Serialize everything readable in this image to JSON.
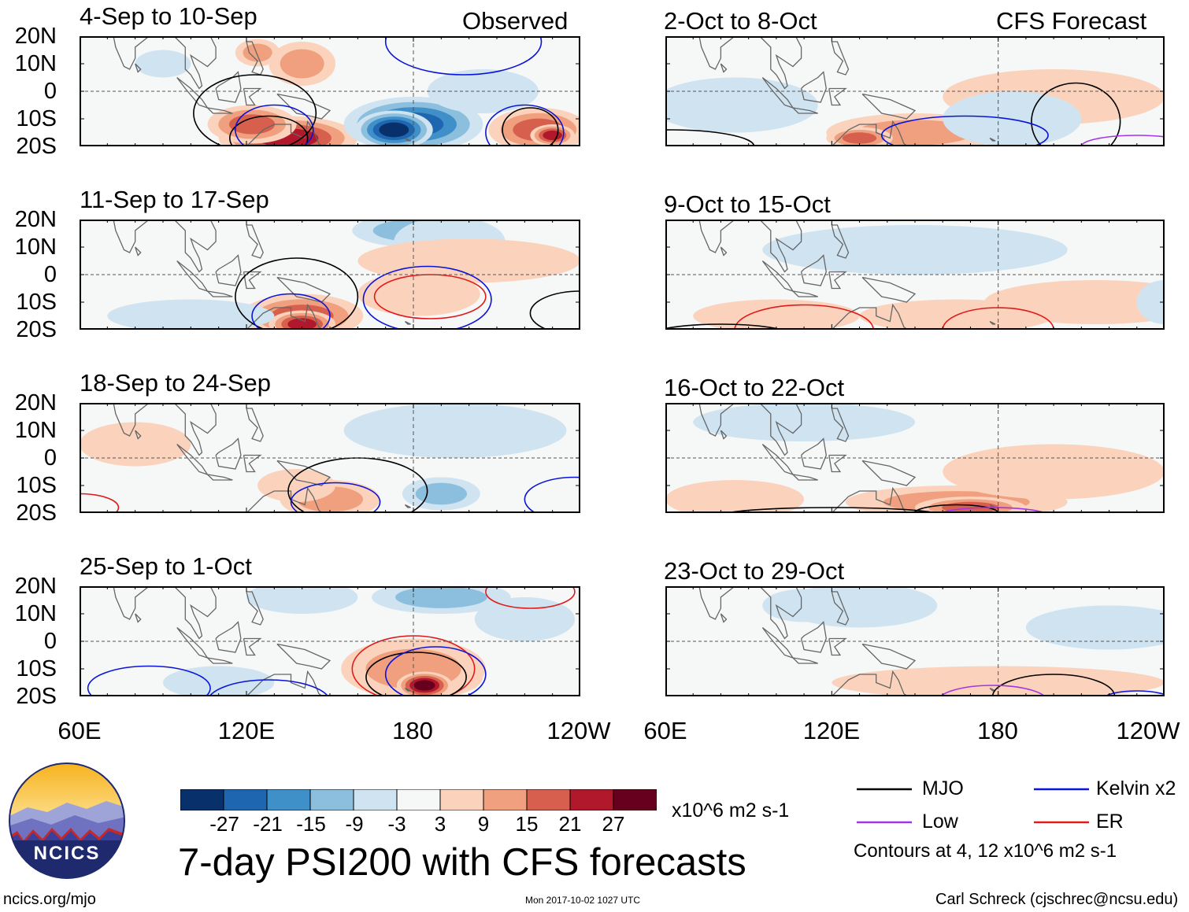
{
  "chart_data": {
    "type": "heatmap",
    "title": "7-day PSI200 with CFS forecasts",
    "columns": [
      {
        "label": "Observed",
        "panels": [
          "4-Sep to 10-Sep",
          "11-Sep to 17-Sep",
          "18-Sep to 24-Sep",
          "25-Sep to 1-Oct"
        ]
      },
      {
        "label": "CFS Forecast",
        "panels": [
          "2-Oct to 8-Oct",
          "9-Oct to 15-Oct",
          "16-Oct to 22-Oct",
          "23-Oct to 29-Oct"
        ]
      }
    ],
    "lat_ticks": [
      "20N",
      "10N",
      "0",
      "10S",
      "20S"
    ],
    "lon_ticks": [
      "60E",
      "120E",
      "180",
      "120W"
    ],
    "ylim": [
      -20,
      20
    ],
    "xlim": [
      60,
      240
    ],
    "colorbar": {
      "ticks": [
        "-27",
        "-21",
        "-15",
        "-9",
        "-3",
        "3",
        "9",
        "15",
        "21",
        "27"
      ],
      "colors": [
        "#08306b",
        "#1f66b0",
        "#3f8fc8",
        "#8cbfde",
        "#cfe3f1",
        "#f6f7f7",
        "#fbd3bd",
        "#f0a07e",
        "#d6604d",
        "#b2182b",
        "#67001f"
      ],
      "units": "x10^6 m2 s-1"
    },
    "legend": [
      {
        "name": "MJO",
        "color": "#000000"
      },
      {
        "name": "Kelvin x2",
        "color": "#0a14d8"
      },
      {
        "name": "Low",
        "color": "#a335e6"
      },
      {
        "name": "ER",
        "color": "#e01b1b"
      }
    ],
    "contour_note": "Contours at 4, 12 x10^6 m2 s-1",
    "panel_features": [
      {
        "blobs": [
          [
            135,
            -17,
            25,
            8,
            21
          ],
          [
            122,
            -12,
            16,
            7,
            15
          ],
          [
            124,
            14,
            8,
            5,
            9
          ],
          [
            140,
            10,
            12,
            8,
            9
          ],
          [
            180,
            -12,
            25,
            10,
            -21
          ],
          [
            173,
            -14,
            14,
            7,
            -27
          ],
          [
            225,
            -14,
            18,
            8,
            15
          ],
          [
            230,
            -16,
            8,
            4,
            21
          ],
          [
            90,
            10,
            10,
            5,
            -3
          ],
          [
            205,
            0,
            20,
            8,
            -3
          ]
        ],
        "contours": [
          [
            123,
            -8,
            22,
            14,
            "#000000"
          ],
          [
            128,
            -17,
            14,
            8,
            "#000000"
          ],
          [
            130,
            -14,
            14,
            9,
            "#0a14d8"
          ],
          [
            220,
            -15,
            14,
            10,
            "#0a14d8"
          ],
          [
            222,
            -14,
            10,
            8,
            "#000000"
          ],
          [
            198,
            18,
            28,
            12,
            "#0a14d8"
          ]
        ]
      },
      {
        "blobs": [
          [
            140,
            -15,
            22,
            8,
            15
          ],
          [
            140,
            -18,
            12,
            5,
            21
          ],
          [
            180,
            16,
            22,
            6,
            -9
          ],
          [
            193,
            12,
            20,
            9,
            -3
          ],
          [
            182,
            -7,
            22,
            8,
            3
          ],
          [
            200,
            5,
            40,
            8,
            3
          ],
          [
            100,
            -15,
            30,
            6,
            -3
          ]
        ],
        "contours": [
          [
            138,
            -8,
            22,
            14,
            "#000000"
          ],
          [
            136,
            -15,
            14,
            8,
            "#0a14d8"
          ],
          [
            185,
            -9,
            23,
            12,
            "#0a14d8"
          ],
          [
            186,
            -8,
            20,
            8,
            "#e01b1b"
          ],
          [
            240,
            -14,
            18,
            8,
            "#000000"
          ]
        ]
      },
      {
        "blobs": [
          [
            150,
            -15,
            18,
            7,
            9
          ],
          [
            138,
            -10,
            14,
            6,
            3
          ],
          [
            190,
            -13,
            14,
            6,
            -9
          ],
          [
            195,
            10,
            40,
            10,
            -3
          ],
          [
            80,
            5,
            20,
            8,
            3
          ]
        ],
        "contours": [
          [
            160,
            -12,
            25,
            12,
            "#000000"
          ],
          [
            152,
            -16,
            16,
            7,
            "#0a14d8"
          ],
          [
            238,
            -15,
            18,
            8,
            "#0a14d8"
          ],
          [
            60,
            -18,
            14,
            5,
            "#e01b1b"
          ]
        ]
      },
      {
        "blobs": [
          [
            183,
            -13,
            22,
            8,
            21
          ],
          [
            180,
            -10,
            26,
            11,
            9
          ],
          [
            184,
            -16,
            10,
            5,
            27
          ],
          [
            190,
            16,
            25,
            6,
            -9
          ],
          [
            140,
            16,
            20,
            6,
            -3
          ],
          [
            220,
            8,
            18,
            8,
            -3
          ],
          [
            110,
            -15,
            20,
            6,
            -3
          ]
        ],
        "contours": [
          [
            180,
            -10,
            22,
            12,
            "#e01b1b"
          ],
          [
            181,
            -13,
            18,
            9,
            "#000000"
          ],
          [
            188,
            -12,
            18,
            10,
            "#0a14d8"
          ],
          [
            85,
            -17,
            22,
            8,
            "#0a14d8"
          ],
          [
            128,
            -22,
            22,
            8,
            "#0a14d8"
          ],
          [
            222,
            18,
            16,
            6,
            "#e01b1b"
          ]
        ]
      },
      {
        "blobs": [
          [
            150,
            -15,
            32,
            7,
            9
          ],
          [
            130,
            -17,
            12,
            4,
            15
          ],
          [
            200,
            -2,
            40,
            10,
            3
          ],
          [
            85,
            -5,
            30,
            10,
            -3
          ],
          [
            185,
            -10,
            25,
            10,
            -3
          ]
        ],
        "contours": [
          [
            208,
            -11,
            16,
            14,
            "#000000"
          ],
          [
            168,
            -16,
            30,
            7,
            "#0a14d8"
          ],
          [
            62,
            -20,
            30,
            6,
            "#000000"
          ],
          [
            230,
            -20,
            20,
            4,
            "#a335e6"
          ]
        ]
      },
      {
        "blobs": [
          [
            150,
            9,
            55,
            9,
            -3
          ],
          [
            165,
            -15,
            35,
            6,
            3
          ],
          [
            215,
            -10,
            40,
            8,
            3
          ],
          [
            100,
            -15,
            30,
            6,
            3
          ],
          [
            240,
            -10,
            10,
            8,
            -3
          ]
        ],
        "contours": [
          [
            110,
            -20,
            25,
            9,
            "#e01b1b"
          ],
          [
            180,
            -20,
            20,
            8,
            "#e01b1b"
          ],
          [
            80,
            -22,
            25,
            4,
            "#000000"
          ]
        ]
      },
      {
        "blobs": [
          [
            110,
            13,
            40,
            7,
            -3
          ],
          [
            165,
            -16,
            40,
            6,
            9
          ],
          [
            170,
            -18,
            20,
            4,
            15
          ],
          [
            85,
            -15,
            25,
            7,
            3
          ],
          [
            200,
            -5,
            40,
            10,
            3
          ]
        ],
        "contours": [
          [
            120,
            -21,
            40,
            3,
            "#000000"
          ],
          [
            165,
            -20,
            15,
            3,
            "#000000"
          ],
          [
            178,
            -21,
            20,
            3,
            "#a335e6"
          ]
        ]
      },
      {
        "blobs": [
          [
            130,
            13,
            28,
            8,
            -3
          ],
          [
            180,
            -15,
            60,
            6,
            3
          ],
          [
            110,
            13,
            15,
            6,
            -3
          ],
          [
            220,
            5,
            30,
            8,
            -3
          ]
        ],
        "contours": [
          [
            200,
            -20,
            22,
            8,
            "#000000"
          ],
          [
            178,
            -22,
            20,
            6,
            "#a335e6"
          ],
          [
            230,
            -21,
            12,
            3,
            "#0a14d8"
          ]
        ]
      }
    ]
  },
  "footer": {
    "logo_text": "NCICS",
    "url": "ncics.org/mjo",
    "timestamp": "Mon 2017-10-02 1027 UTC",
    "author": "Carl Schreck (cjschrec@ncsu.edu)"
  }
}
